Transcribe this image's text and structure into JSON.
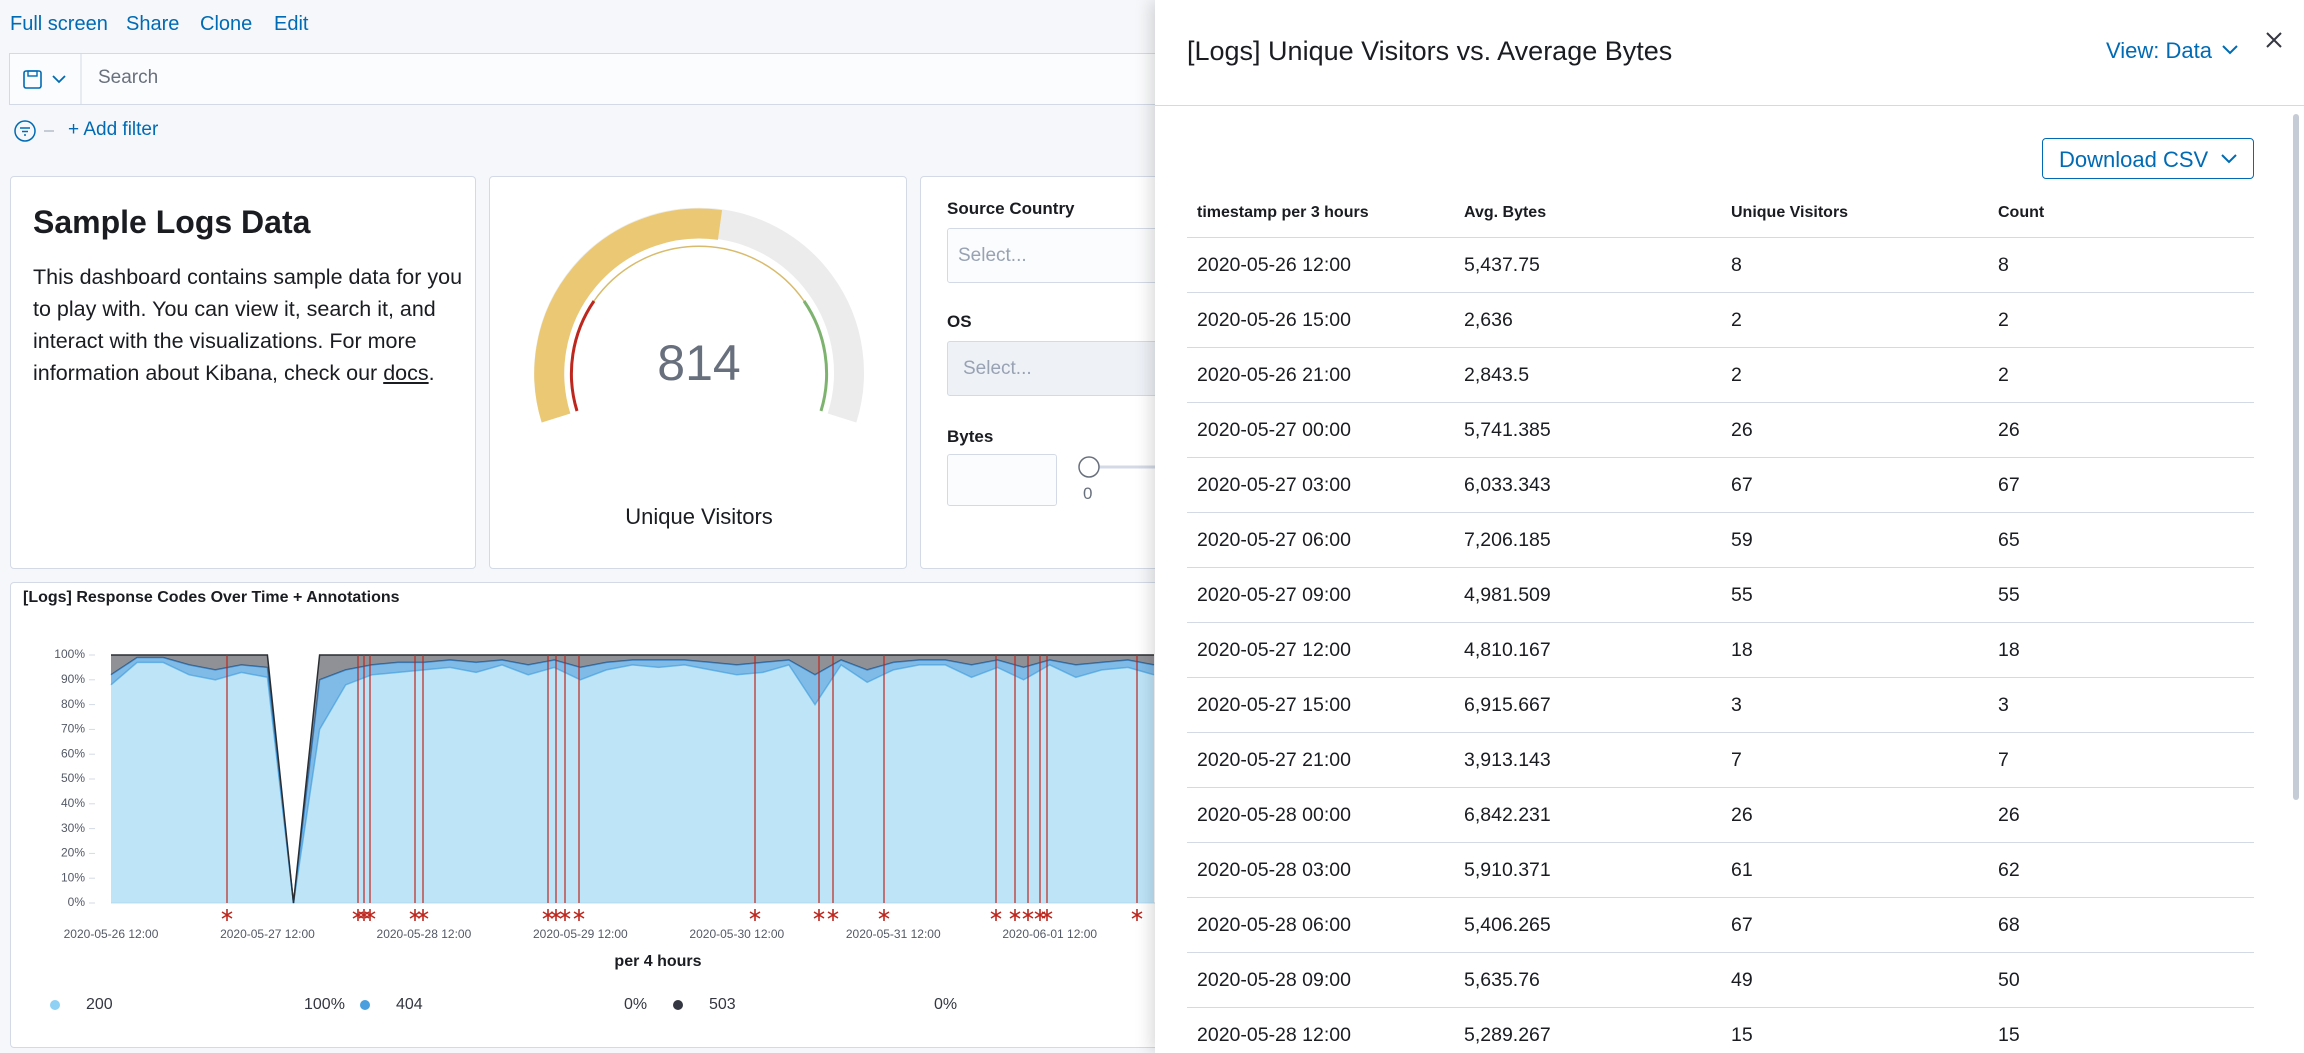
{
  "nav": {
    "links": [
      "Full screen",
      "Share",
      "Clone",
      "Edit"
    ]
  },
  "search": {
    "placeholder": "Search"
  },
  "filter": {
    "add": "+ Add filter"
  },
  "markdown": {
    "title": "Sample Logs Data",
    "text": "This dashboard contains sample data for you to play with. You can view it, search it, and interact with the visualizations. For more information about Kibana, check our",
    "link": "docs",
    "end": "."
  },
  "gauge": {
    "value": 814,
    "label": "Unique Visitors"
  },
  "controls": {
    "source_country": "Source Country",
    "source_placeholder": "Select...",
    "os": "OS",
    "os_placeholder": "Select...",
    "bytes": "Bytes",
    "slider_min": 0
  },
  "chart_data": {
    "type": "area",
    "title": "[Logs] Response Codes Over Time + Annotations",
    "x_label": "per 4 hours",
    "x_labels": [
      "2020-05-26 12:00",
      "2020-05-27 12:00",
      "2020-05-28 12:00",
      "2020-05-29 12:00",
      "2020-05-30 12:00",
      "2020-05-31 12:00",
      "2020-06-01 12:00"
    ],
    "ylim": [
      0,
      100
    ],
    "yticks": [
      {
        "value": 0,
        "label": "0%"
      },
      {
        "value": 10,
        "label": "10%"
      },
      {
        "value": 20,
        "label": "20%"
      },
      {
        "value": 30,
        "label": "30%"
      },
      {
        "value": 40,
        "label": "40%"
      },
      {
        "value": 50,
        "label": "50%"
      },
      {
        "value": 60,
        "label": "60%"
      },
      {
        "value": 70,
        "label": "70%"
      },
      {
        "value": 80,
        "label": "80%"
      },
      {
        "value": 90,
        "label": "90%"
      },
      {
        "value": 100,
        "label": "100%"
      }
    ],
    "stacked": true,
    "series": [
      {
        "name": "200",
        "color": "#a3d8f5",
        "legend_value": "100%",
        "values": [
          88,
          97,
          97,
          92,
          90,
          93,
          91,
          0,
          70,
          88,
          92,
          93,
          94,
          95,
          93,
          96,
          92,
          95,
          90,
          94,
          96,
          95,
          96,
          94,
          92,
          93,
          96,
          80,
          96,
          89,
          94,
          96,
          96,
          91,
          95,
          90,
          96,
          91,
          94,
          95,
          92
        ]
      },
      {
        "name": "404",
        "color": "#4a9ede",
        "legend_value": "0%",
        "values": [
          4,
          2,
          2,
          4,
          4,
          3,
          4,
          0,
          20,
          6,
          4,
          4,
          3,
          3,
          4,
          2,
          4,
          3,
          5,
          3,
          2,
          3,
          2,
          3,
          4,
          4,
          2,
          12,
          2,
          5,
          3,
          2,
          2,
          5,
          3,
          5,
          2,
          5,
          3,
          3,
          4
        ]
      },
      {
        "name": "503",
        "color": "#343741",
        "legend_value": "0%",
        "values": [
          8,
          1,
          1,
          4,
          6,
          4,
          5,
          0,
          10,
          6,
          4,
          3,
          3,
          2,
          3,
          2,
          4,
          2,
          5,
          3,
          2,
          2,
          2,
          3,
          4,
          3,
          2,
          8,
          2,
          6,
          3,
          2,
          2,
          4,
          2,
          5,
          2,
          4,
          3,
          2,
          4
        ]
      }
    ]
  },
  "flyout": {
    "title": "[Logs] Unique Visitors vs. Average Bytes",
    "view": "View: Data",
    "download": "Download CSV",
    "table": {
      "columns": [
        "timestamp per 3 hours",
        "Avg. Bytes",
        "Unique Visitors",
        "Count"
      ],
      "rows": [
        [
          "2020-05-26 12:00",
          "5,437.75",
          "8",
          "8"
        ],
        [
          "2020-05-26 15:00",
          "2,636",
          "2",
          "2"
        ],
        [
          "2020-05-26 21:00",
          "2,843.5",
          "2",
          "2"
        ],
        [
          "2020-05-27 00:00",
          "5,741.385",
          "26",
          "26"
        ],
        [
          "2020-05-27 03:00",
          "6,033.343",
          "67",
          "67"
        ],
        [
          "2020-05-27 06:00",
          "7,206.185",
          "59",
          "65"
        ],
        [
          "2020-05-27 09:00",
          "4,981.509",
          "55",
          "55"
        ],
        [
          "2020-05-27 12:00",
          "4,810.167",
          "18",
          "18"
        ],
        [
          "2020-05-27 15:00",
          "6,915.667",
          "3",
          "3"
        ],
        [
          "2020-05-27 21:00",
          "3,913.143",
          "7",
          "7"
        ],
        [
          "2020-05-28 00:00",
          "6,842.231",
          "26",
          "26"
        ],
        [
          "2020-05-28 03:00",
          "5,910.371",
          "61",
          "62"
        ],
        [
          "2020-05-28 06:00",
          "5,406.265",
          "67",
          "68"
        ],
        [
          "2020-05-28 09:00",
          "5,635.76",
          "49",
          "50"
        ],
        [
          "2020-05-28 12:00",
          "5,289.267",
          "15",
          "15"
        ]
      ]
    }
  }
}
